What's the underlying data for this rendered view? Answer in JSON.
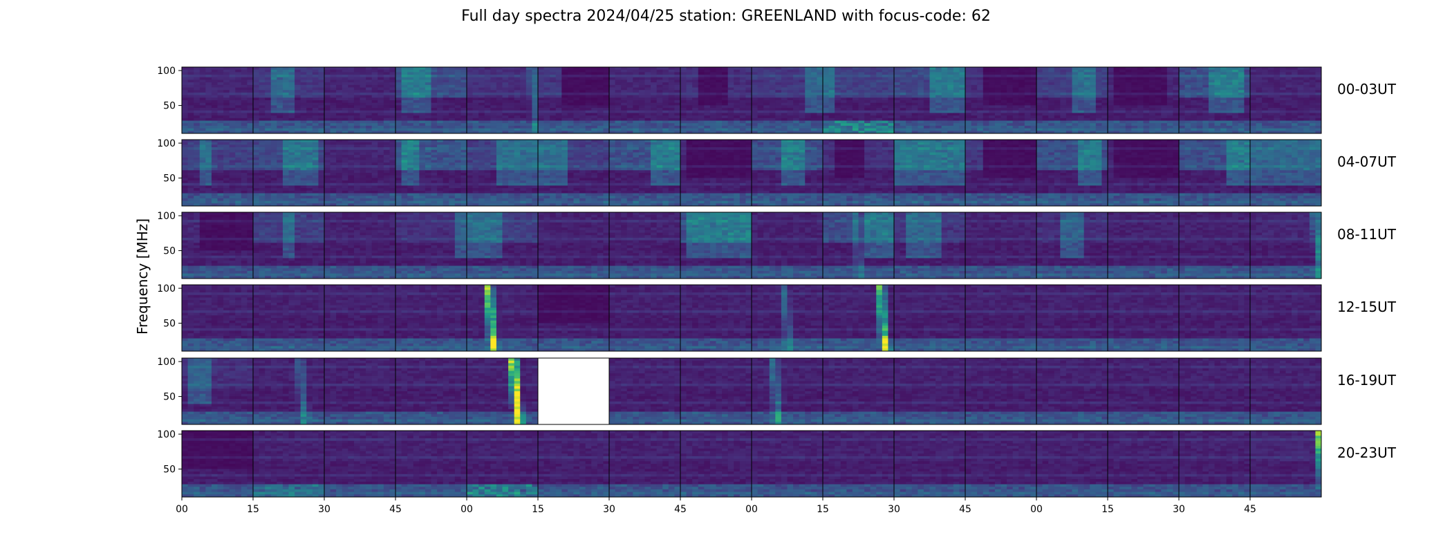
{
  "chart_data": {
    "type": "heatmap",
    "title": "Full day spectra 2024/04/25 station: GREENLAND with focus-code: 62",
    "ylabel": "Frequency [MHz]",
    "xlabel": "",
    "ylim": [
      10,
      105
    ],
    "yticks": [
      50,
      100
    ],
    "xticks": [
      "00",
      "15",
      "30",
      "45",
      "00",
      "15",
      "30",
      "45",
      "00",
      "15",
      "30",
      "45",
      "00",
      "15",
      "30",
      "45"
    ],
    "rows": [
      {
        "label": "00-03UT",
        "panels": [
          {
            "bright_hf": 0.1
          },
          {
            "bright_hf": 0.3,
            "band": [
              0.25,
              0.55
            ]
          },
          {
            "bright_hf": 0.08
          },
          {
            "bright_hf": 0.55,
            "band": [
              0.1,
              0.5
            ]
          },
          {
            "bright_hf": 0.2,
            "burst": [
              0.92,
              0.3
            ]
          },
          {
            "bright_hf": 0.3,
            "dark_block": [
              0.3,
              1.0
            ]
          },
          {
            "bright_hf": 0.1
          },
          {
            "bright_hf": 0.2,
            "dark_block": [
              0.25,
              0.7
            ]
          },
          {
            "bright_hf": 0.3,
            "band": [
              0.75,
              1.0
            ]
          },
          {
            "bright_hf": 0.4,
            "band": [
              0.0,
              0.2
            ],
            "lf_bright": 0.8
          },
          {
            "bright_hf": 0.5,
            "band": [
              0.5,
              1.0
            ]
          },
          {
            "bright_hf": 0.2,
            "dark_block": [
              0.25,
              1.0
            ]
          },
          {
            "bright_hf": 0.4,
            "band": [
              0.5,
              0.8
            ]
          },
          {
            "bright_hf": 0.1,
            "dark_block": [
              0.05,
              0.85
            ]
          },
          {
            "bright_hf": 0.6,
            "band": [
              0.4,
              0.95
            ]
          },
          {
            "bright_hf": 0.08
          }
        ]
      },
      {
        "label": "04-07UT",
        "panels": [
          {
            "bright_hf": 0.4,
            "band": [
              0.25,
              0.45
            ]
          },
          {
            "bright_hf": 0.5,
            "band": [
              0.45,
              0.95
            ]
          },
          {
            "bright_hf": 0.08
          },
          {
            "bright_hf": 0.7,
            "band": [
              0.1,
              0.35
            ]
          },
          {
            "bright_hf": 0.4,
            "band": [
              0.45,
              1.0
            ]
          },
          {
            "bright_hf": 0.4,
            "band": [
              0.0,
              0.45
            ]
          },
          {
            "bright_hf": 0.6,
            "band": [
              0.55,
              1.0
            ]
          },
          {
            "bright_hf": 0.1,
            "dark_block": [
              0.05,
              1.0
            ]
          },
          {
            "bright_hf": 0.6,
            "band": [
              0.4,
              0.75
            ]
          },
          {
            "bright_hf": 0.2,
            "dark_block": [
              0.2,
              0.6
            ]
          },
          {
            "bright_hf": 0.5,
            "band": [
              0.0,
              1.0
            ]
          },
          {
            "bright_hf": 0.3,
            "dark_block": [
              0.25,
              1.0
            ]
          },
          {
            "bright_hf": 0.6,
            "band": [
              0.55,
              0.95
            ]
          },
          {
            "bright_hf": 0.1,
            "dark_block": [
              0.05,
              1.0
            ]
          },
          {
            "bright_hf": 0.6,
            "band": [
              0.65,
              1.0
            ]
          },
          {
            "bright_hf": 0.3,
            "band": [
              0.0,
              1.0
            ]
          }
        ]
      },
      {
        "label": "08-11UT",
        "panels": [
          {
            "bright_hf": 0.1,
            "dark_block": [
              0.25,
              1.0
            ]
          },
          {
            "bright_hf": 0.4,
            "band": [
              0.4,
              0.6
            ]
          },
          {
            "bright_hf": 0.05
          },
          {
            "bright_hf": 0.2,
            "band": [
              0.85,
              1.0
            ]
          },
          {
            "bright_hf": 0.4,
            "band": [
              0.0,
              0.5
            ]
          },
          {
            "bright_hf": 0.05
          },
          {
            "bright_hf": 0.05
          },
          {
            "bright_hf": 0.6,
            "band": [
              0.1,
              1.0
            ]
          },
          {
            "bright_hf": 0.05
          },
          {
            "bright_hf": 0.5,
            "band": [
              0.55,
              1.0
            ],
            "burst": [
              0.45,
              0.2
            ]
          },
          {
            "bright_hf": 0.3,
            "band": [
              0.2,
              0.65
            ]
          },
          {
            "bright_hf": 0.05
          },
          {
            "bright_hf": 0.2,
            "band": [
              0.3,
              0.7
            ]
          },
          {
            "bright_hf": 0.05
          },
          {
            "bright_hf": 0.05
          },
          {
            "bright_hf": 0.1,
            "burst": [
              0.92,
              0.5
            ]
          }
        ]
      },
      {
        "label": "12-15UT",
        "panels": [
          {
            "bright_hf": 0.05
          },
          {
            "bright_hf": 0.05
          },
          {
            "bright_hf": 0.05
          },
          {
            "bright_hf": 0.05
          },
          {
            "bright_hf": 0.05,
            "burst": [
              0.3,
              1.0
            ]
          },
          {
            "bright_hf": 0.1,
            "dark_block": [
              0.0,
              1.0
            ]
          },
          {
            "bright_hf": 0.05
          },
          {
            "bright_hf": 0.05
          },
          {
            "bright_hf": 0.05,
            "burst": [
              0.45,
              0.3
            ]
          },
          {
            "bright_hf": 0.05,
            "burst": [
              0.8,
              0.9
            ]
          },
          {
            "bright_hf": 0.05
          },
          {
            "bright_hf": 0.05
          },
          {
            "bright_hf": 0.05
          },
          {
            "bright_hf": 0.05
          },
          {
            "bright_hf": 0.05
          },
          {
            "bright_hf": 0.05
          }
        ]
      },
      {
        "label": "16-19UT",
        "panels": [
          {
            "bright_hf": 0.2,
            "band": [
              0.1,
              0.4
            ]
          },
          {
            "bright_hf": 0.05,
            "burst": [
              0.65,
              0.3
            ]
          },
          {
            "bright_hf": 0.05
          },
          {
            "bright_hf": 0.05
          },
          {
            "bright_hf": 0.05,
            "burst": [
              0.65,
              1.3
            ]
          },
          {
            "missing": true
          },
          {
            "bright_hf": 0.05
          },
          {
            "bright_hf": 0.05
          },
          {
            "bright_hf": 0.05,
            "burst": [
              0.3,
              0.4
            ]
          },
          {
            "bright_hf": 0.05
          },
          {
            "bright_hf": 0.05
          },
          {
            "bright_hf": 0.05
          },
          {
            "bright_hf": 0.05
          },
          {
            "bright_hf": 0.05
          },
          {
            "bright_hf": 0.05
          },
          {
            "bright_hf": 0.05
          }
        ]
      },
      {
        "label": "20-23UT",
        "panels": [
          {
            "bright_hf": 0.1,
            "dark_block": [
              0.0,
              1.0
            ]
          },
          {
            "bright_hf": 0.05,
            "lf_bright": 0.5
          },
          {
            "bright_hf": 0.05
          },
          {
            "bright_hf": 0.05
          },
          {
            "bright_hf": 0.05,
            "lf_bright": 0.7
          },
          {
            "bright_hf": 0.05
          },
          {
            "bright_hf": 0.05
          },
          {
            "bright_hf": 0.05
          },
          {
            "bright_hf": 0.05
          },
          {
            "bright_hf": 0.05
          },
          {
            "bright_hf": 0.05
          },
          {
            "bright_hf": 0.05
          },
          {
            "bright_hf": 0.05
          },
          {
            "bright_hf": 0.05
          },
          {
            "bright_hf": 0.05
          },
          {
            "bright_hf": 0.1,
            "burst": [
              0.97,
              1.0
            ]
          }
        ]
      }
    ]
  },
  "colormap": [
    "#440154",
    "#46327e",
    "#365c8d",
    "#277f8e",
    "#1fa187",
    "#4ac16d",
    "#a0da39",
    "#fde725"
  ]
}
